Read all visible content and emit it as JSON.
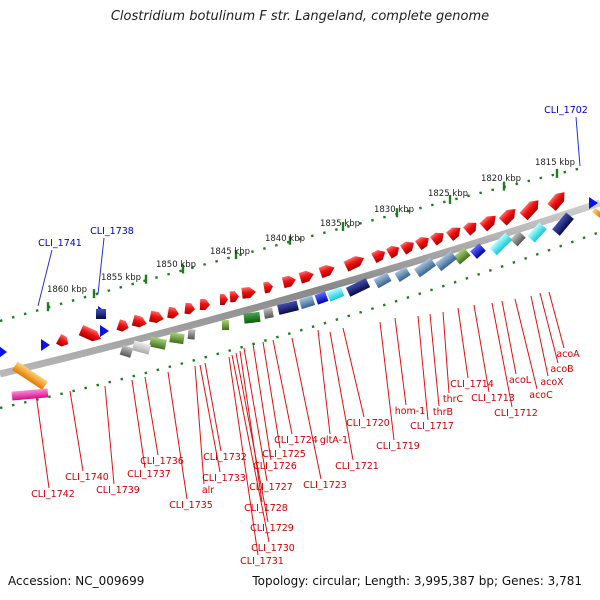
{
  "title": "Clostridium botulinum F str. Langeland, complete genome",
  "footer": {
    "accession": "Accession: NC_009699",
    "topology": "Topology: circular; Length: 3,995,387 bp; Genes: 3,781"
  },
  "colors": {
    "backbone": "#8a8a8a",
    "gene": "#ee1111",
    "gene_label": "#cc0000",
    "marker_label": "#0000cc",
    "tick": "#1d7d1d"
  },
  "scale_labels": [
    "1815 kbp",
    "1820 kbp",
    "1825 kbp",
    "1830 kbp",
    "1835 kbp",
    "1840 kbp",
    "1845 kbp",
    "1850 kbp",
    "1855 kbp",
    "1860 kbp"
  ],
  "markers": [
    "CLI_1702",
    "CLI_1738",
    "CLI_1741"
  ],
  "gene_labels": [
    "acoA",
    "acoB",
    "acoX",
    "acoC",
    "acoL",
    "CLI_1712",
    "CLI_1713",
    "CLI_1714",
    "thrC",
    "thrB",
    "hom-1",
    "CLI_1717",
    "CLI_1719",
    "CLI_1720",
    "gltA-1",
    "CLI_1721",
    "CLI_1723",
    "CLI_1724",
    "CLI_1725",
    "CLI_1726",
    "CLI_1727",
    "CLI_1728",
    "CLI_1729",
    "CLI_1730",
    "CLI_1731",
    "CLI_1732",
    "CLI_1733",
    "alr",
    "CLI_1735",
    "CLI_1736",
    "CLI_1737",
    "CLI_1739",
    "CLI_1740",
    "CLI_1742"
  ]
}
